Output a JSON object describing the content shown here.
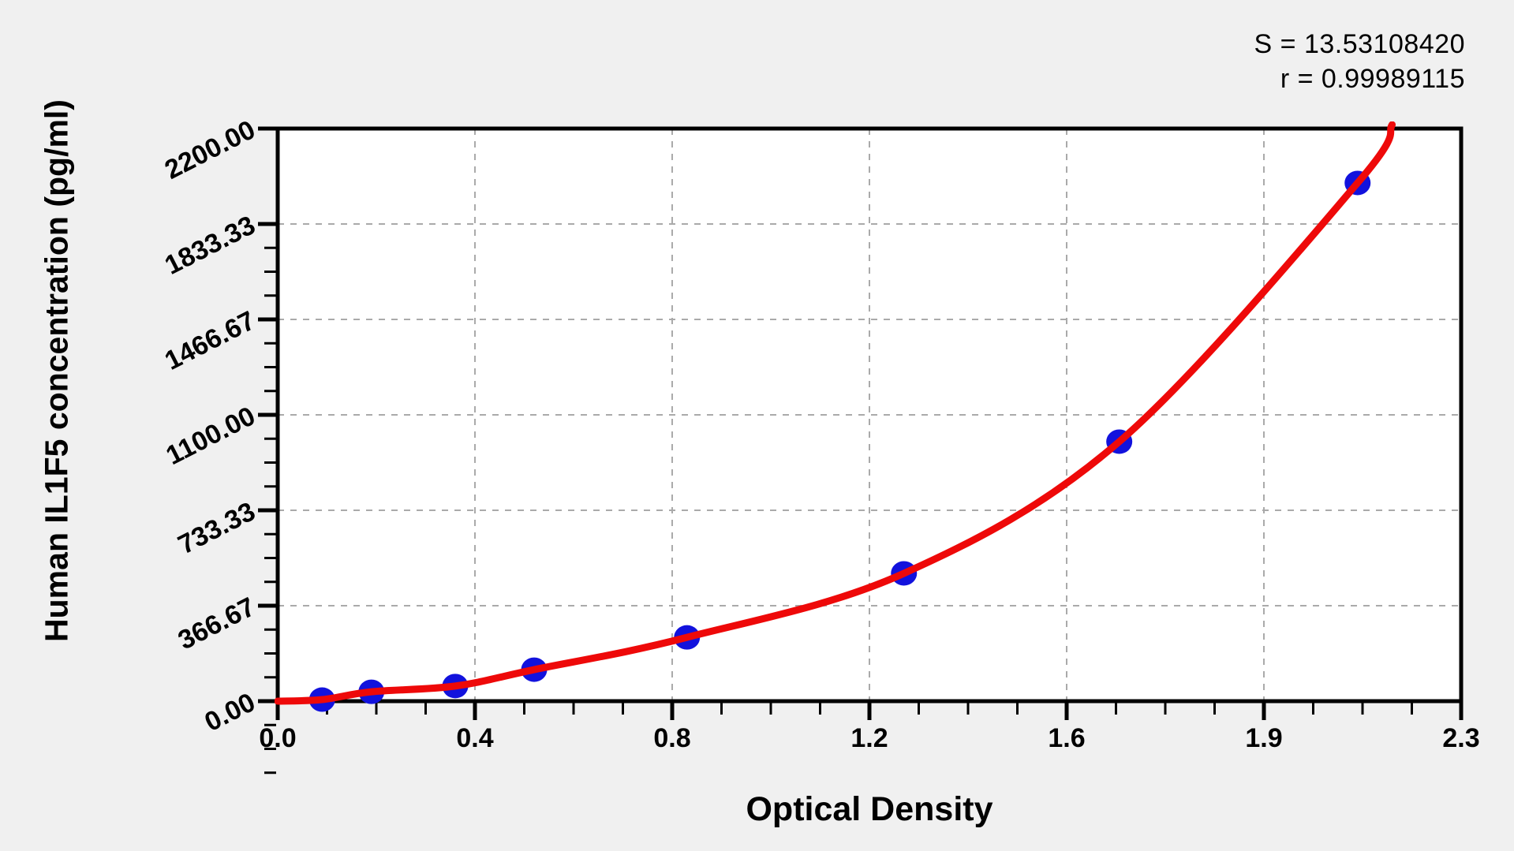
{
  "page": {
    "background": "#f0f0f0",
    "plot_background": "#ffffff"
  },
  "stats": {
    "s": "S = 13.53108420",
    "r": "r = 0.99989115"
  },
  "chart_data": {
    "type": "scatter",
    "title": "",
    "xlabel": "Optical Density",
    "ylabel": "Human IL1F5 concentration (pg/ml)",
    "x_ticks": [
      "0.0",
      "0.4",
      "0.8",
      "1.2",
      "1.6",
      "1.9",
      "2.3"
    ],
    "x_tick_values": [
      0.0,
      0.4,
      0.8,
      1.2,
      1.6,
      1.9,
      2.3
    ],
    "y_ticks": [
      "0.00",
      "366.67",
      "733.33",
      "1100.00",
      "1466.67",
      "1833.33",
      "2200.00"
    ],
    "y_tick_values": [
      0,
      366.67,
      733.33,
      1100.0,
      1466.67,
      1833.33,
      2200.0
    ],
    "ylim": [
      0,
      2200
    ],
    "xlim": [
      0,
      2.3
    ],
    "minor_divisions": 4,
    "grid": {
      "show": true,
      "style": "dashed",
      "color": "#aaaaaa",
      "at_major_ticks": true
    },
    "legend": "none",
    "fit_stats": {
      "S": "13.53108420",
      "r": "0.99989115"
    },
    "series": [
      {
        "name": "standards",
        "points": [
          {
            "od": 0.09,
            "conc": 6
          },
          {
            "od": 0.19,
            "conc": 36
          },
          {
            "od": 0.36,
            "conc": 58
          },
          {
            "od": 0.52,
            "conc": 121
          },
          {
            "od": 0.83,
            "conc": 245
          },
          {
            "od": 1.27,
            "conc": 491
          },
          {
            "od": 1.68,
            "conc": 997
          },
          {
            "od": 2.09,
            "conc": 1991
          }
        ]
      }
    ],
    "curve_extension": {
      "start": {
        "od": 0.0,
        "conc": 0
      },
      "end": {
        "od": 2.16,
        "conc": 2215
      }
    },
    "colors": {
      "points": "#1212dd",
      "curve": "#ee0909",
      "frame": "#000000",
      "grid": "#aaaaaa",
      "text": "#000000"
    }
  }
}
